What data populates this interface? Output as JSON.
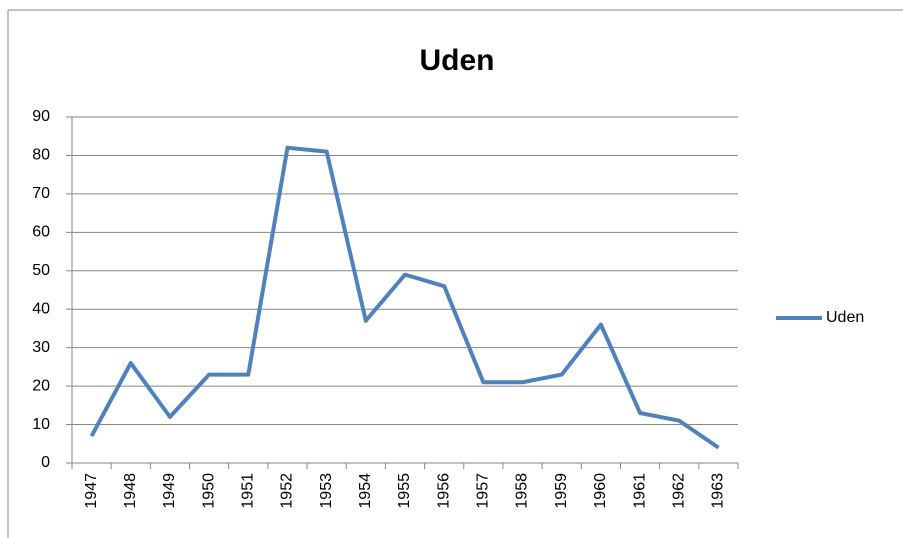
{
  "chart_data": {
    "type": "line",
    "title": "Uden",
    "categories": [
      "1947",
      "1948",
      "1949",
      "1950",
      "1951",
      "1952",
      "1953",
      "1954",
      "1955",
      "1956",
      "1957",
      "1958",
      "1959",
      "1960",
      "1961",
      "1962",
      "1963"
    ],
    "series": [
      {
        "name": "Uden",
        "color": "#4f81bd",
        "values": [
          7,
          26,
          12,
          23,
          23,
          82,
          81,
          37,
          49,
          46,
          21,
          21,
          23,
          36,
          13,
          11,
          4
        ]
      }
    ],
    "ylim": [
      0,
      90
    ],
    "yticks": [
      0,
      10,
      20,
      30,
      40,
      50,
      60,
      70,
      80,
      90
    ],
    "grid": true,
    "legend": "right"
  }
}
